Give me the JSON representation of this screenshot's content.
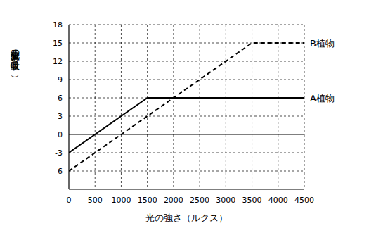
{
  "chart_data": {
    "type": "line",
    "x_label": "光の強さ（ルクス）",
    "y_label": "二酸化炭素の吸収量（mg）",
    "xlim": [
      0,
      4500
    ],
    "xticks": [
      0,
      500,
      1000,
      1500,
      2000,
      2500,
      3000,
      3500,
      4000,
      4500
    ],
    "ylim": [
      -9,
      18
    ],
    "yticks": [
      -6,
      -3,
      0,
      3,
      6,
      9,
      12,
      15,
      18
    ],
    "grid": true,
    "series": [
      {
        "name": "A植物",
        "color": "#000000",
        "line_style": "solid",
        "x": [
          0,
          1500,
          4500
        ],
        "values": [
          -3,
          6,
          6
        ]
      },
      {
        "name": "B植物",
        "color": "#000000",
        "line_style": "dashed",
        "x": [
          0,
          3500,
          4500
        ],
        "values": [
          -6,
          15,
          15
        ]
      }
    ]
  }
}
